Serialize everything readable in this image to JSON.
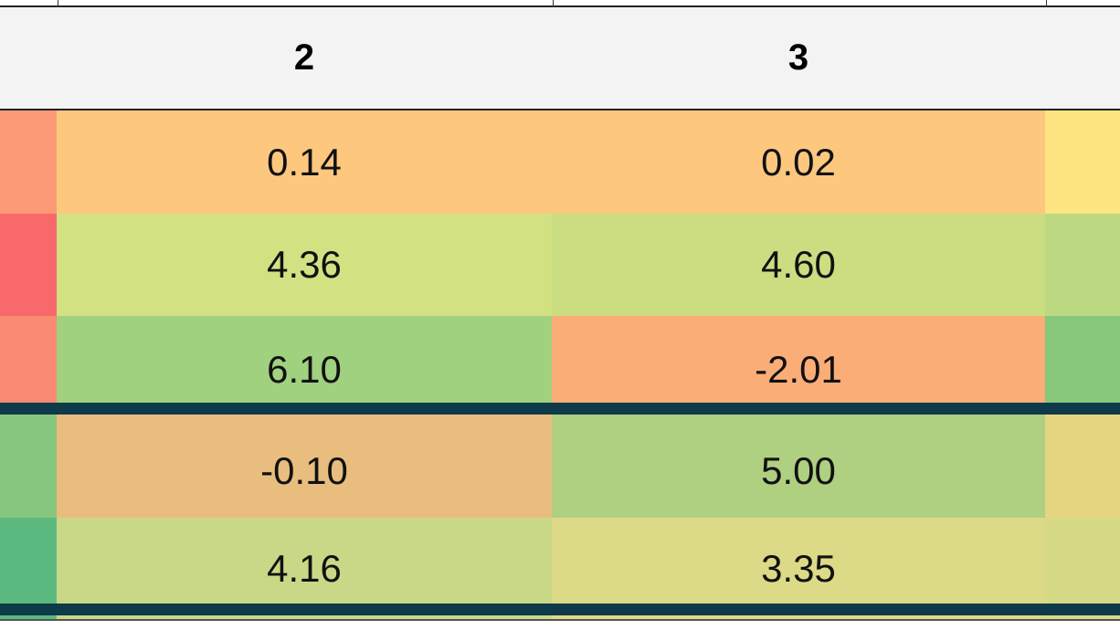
{
  "header": {
    "columns": [
      {
        "label": "2"
      },
      {
        "label": "3"
      }
    ]
  },
  "rows": [
    {
      "cells": [
        {
          "value": "",
          "bg": "#fc9a78"
        },
        {
          "value": "0.14",
          "bg": "#fdc77e"
        },
        {
          "value": "0.02",
          "bg": "#fdc77e"
        },
        {
          "value": "",
          "bg": "#fde583"
        }
      ]
    },
    {
      "cells": [
        {
          "value": "",
          "bg": "#f8696b"
        },
        {
          "value": "4.36",
          "bg": "#d2e182"
        },
        {
          "value": "4.60",
          "bg": "#cbdd81"
        },
        {
          "value": "",
          "bg": "#bcd880"
        }
      ]
    },
    {
      "cells": [
        {
          "value": "",
          "bg": "#fa8a74"
        },
        {
          "value": "6.10",
          "bg": "#a0d17f"
        },
        {
          "value": "-2.01",
          "bg": "#fbad78"
        },
        {
          "value": "",
          "bg": "#87c87d"
        }
      ]
    },
    {
      "cells": [
        {
          "value": "",
          "bg": "#86c67e"
        },
        {
          "value": "-0.10",
          "bg": "#e8bd7e"
        },
        {
          "value": "5.00",
          "bg": "#afcf81"
        },
        {
          "value": "",
          "bg": "#e5d581"
        }
      ]
    },
    {
      "cells": [
        {
          "value": "",
          "bg": "#5bb97f"
        },
        {
          "value": "4.16",
          "bg": "#c9d887"
        },
        {
          "value": "3.35",
          "bg": "#dcda86"
        },
        {
          "value": "",
          "bg": "#d6d986"
        }
      ]
    }
  ]
}
